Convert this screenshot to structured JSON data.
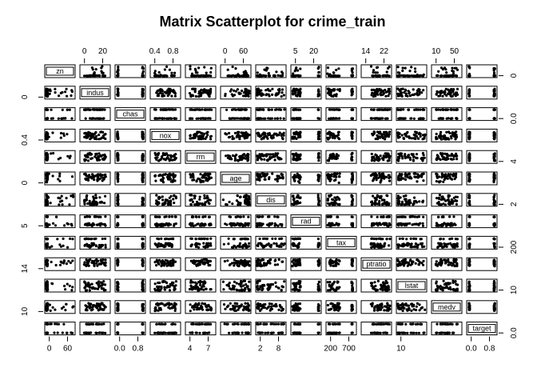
{
  "chart_data": {
    "type": "scatter",
    "title": "Matrix Scatterplot for crime_train",
    "variables": [
      "zn",
      "indus",
      "chas",
      "nox",
      "rm",
      "age",
      "dis",
      "rad",
      "tax",
      "ptratio",
      "lstat",
      "medv",
      "target"
    ],
    "ranges": {
      "zn": [
        0,
        100
      ],
      "indus": [
        0.46,
        27.74
      ],
      "chas": [
        0,
        1
      ],
      "nox": [
        0.389,
        0.871
      ],
      "rm": [
        3.86,
        8.78
      ],
      "age": [
        2.9,
        100
      ],
      "dis": [
        1.13,
        12.13
      ],
      "rad": [
        1,
        24
      ],
      "tax": [
        187,
        711
      ],
      "ptratio": [
        12.6,
        22
      ],
      "lstat": [
        1.73,
        37.97
      ],
      "medv": [
        5,
        50
      ],
      "target": [
        0,
        1
      ]
    },
    "top_ticks": {
      "indus": [
        "0",
        "20"
      ],
      "nox": [
        "0.4",
        "0.8"
      ],
      "age": [
        "0",
        "60"
      ],
      "rad": [
        "5",
        "20"
      ],
      "ptratio": [
        "14",
        "22"
      ],
      "medv": [
        "10",
        "50"
      ]
    },
    "bottom_ticks": {
      "zn": [
        "0",
        "60"
      ],
      "chas": [
        "0.0",
        "0.8"
      ],
      "rm": [
        "4",
        "7"
      ],
      "dis": [
        "2",
        "8"
      ],
      "tax": [
        "200",
        "700"
      ],
      "lstat": [
        "10"
      ],
      "target": [
        "0.0",
        "0.8"
      ]
    },
    "left_ticks": {
      "indus": [
        "0"
      ],
      "nox": [
        "0.4"
      ],
      "age": [
        "0"
      ],
      "rad": [
        "5"
      ],
      "ptratio": [
        "14"
      ],
      "medv": [
        "10"
      ]
    },
    "right_ticks": {
      "zn": [
        "0"
      ],
      "chas": [
        "0.0"
      ],
      "rm": [
        "4"
      ],
      "dis": [
        "2"
      ],
      "tax": [
        "200"
      ],
      "lstat": [
        "10"
      ],
      "target": [
        "0.0"
      ]
    },
    "grid": false,
    "legend": "none"
  }
}
